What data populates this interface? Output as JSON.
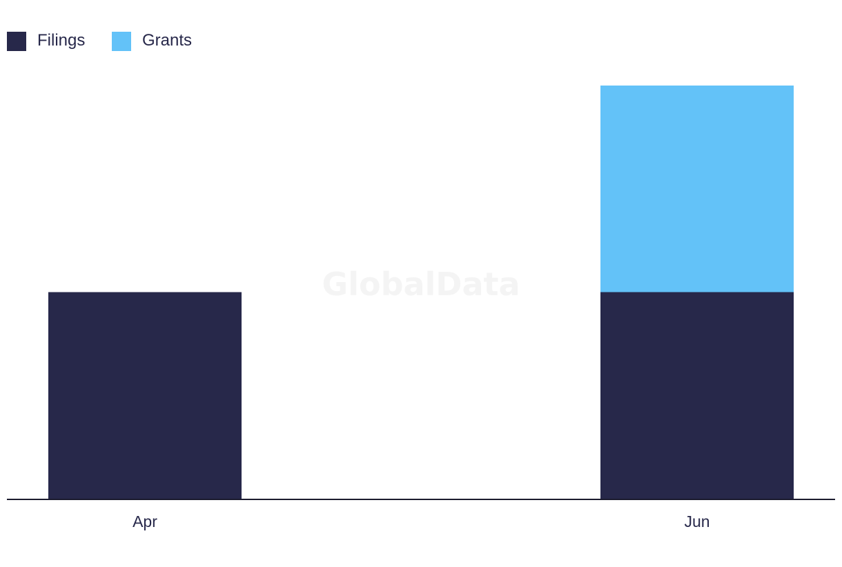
{
  "colors": {
    "filings": "#27284a",
    "grants": "#63c2f8",
    "axis": "#1b1b2e"
  },
  "legend": {
    "items": [
      {
        "label": "Filings",
        "color": "#27284a"
      },
      {
        "label": "Grants",
        "color": "#63c2f8"
      }
    ]
  },
  "watermark": "GlobalData",
  "chart_data": {
    "type": "bar",
    "stacked": true,
    "title": "",
    "xlabel": "",
    "ylabel": "",
    "categories": [
      "Apr",
      "Jun"
    ],
    "series": [
      {
        "name": "Filings",
        "values": [
          1,
          1
        ]
      },
      {
        "name": "Grants",
        "values": [
          0,
          1
        ]
      }
    ],
    "ylim": [
      0,
      2
    ],
    "grid": false,
    "legend_position": "top-left"
  }
}
